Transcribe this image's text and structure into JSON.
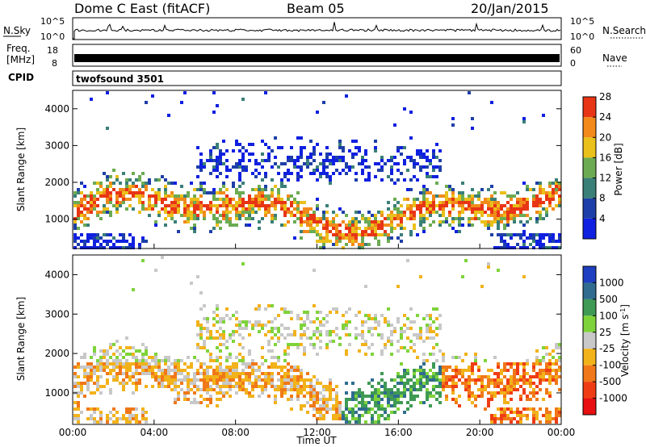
{
  "header": {
    "title": "Dome C East (fitACF)",
    "beam": "Beam 05",
    "date": "20/Jan/2015"
  },
  "status_panel": {
    "nsky_label": "N.Sky",
    "nsky_ticks": [
      "10^5",
      "10^0"
    ],
    "nsearch_label": "N.Search",
    "freq_label_1": "Freq.",
    "freq_label_2": "[MHz]",
    "freq_ticks": [
      "18",
      "8"
    ],
    "nave_label": "Nave",
    "nave_ticks": [
      "60",
      "0"
    ],
    "cpid_label": "CPID",
    "cpid_value": "twofsound 3501"
  },
  "chart_data": [
    {
      "type": "heatmap",
      "parameter": "Power",
      "xlabel": "",
      "ylabel": "Slant Range [km]",
      "ylim": [
        200,
        4500
      ],
      "y_ticks": [
        "1000",
        "2000",
        "3000",
        "4000"
      ],
      "colorbar": {
        "label": "Power [dB]",
        "range": [
          0,
          32
        ],
        "ticks": [
          "4",
          "8",
          "12",
          "16",
          "20",
          "24",
          "28"
        ],
        "colors": [
          "#1020e0",
          "#1e3fa8",
          "#3a7f78",
          "#6cab52",
          "#eac01a",
          "#f18a1a",
          "#e83515"
        ]
      }
    },
    {
      "type": "heatmap",
      "parameter": "Velocity",
      "xlabel": "Time UT",
      "ylabel": "Slant Range [km]",
      "ylim": [
        200,
        4500
      ],
      "y_ticks": [
        "1000",
        "2000",
        "3000",
        "4000"
      ],
      "x_ticks": [
        "00:00",
        "04:00",
        "08:00",
        "12:00",
        "16:00",
        "20:00",
        "00:00"
      ],
      "colorbar": {
        "label_main": "Velocity [m s",
        "label_sup": "-1",
        "label_end": "]",
        "ticks": [
          "1000",
          "500",
          "100",
          "25",
          "-25",
          "-100",
          "-500",
          "-1000"
        ],
        "colors": [
          "#1e3fbf",
          "#2f6c8f",
          "#3e9a55",
          "#7fd33a",
          "#c8c8c8",
          "#f2b21a",
          "#f07818",
          "#f03c14",
          "#e81010"
        ]
      }
    }
  ]
}
